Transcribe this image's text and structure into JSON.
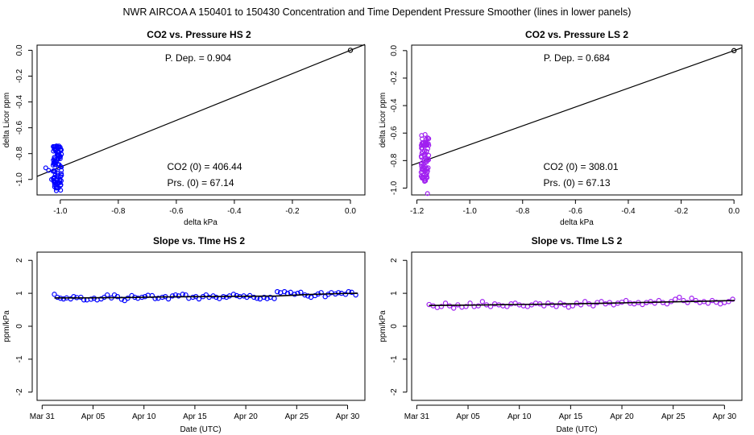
{
  "figure": {
    "title": "NWR   AIRCOA A   150401 to 150430   Concentration and Time Dependent Pressure Smoother (lines in lower panels)"
  },
  "colors": {
    "hs": "#0000ff",
    "ls": "#a020f0",
    "line": "#000000"
  },
  "chart_data": [
    {
      "id": "p1",
      "type": "scatter",
      "title": "CO2 vs. Pressure HS 2",
      "xlabel": "delta kPa",
      "ylabel": "delta Licor ppm",
      "xlim": [
        -1.08,
        0.05
      ],
      "ylim": [
        -1.12,
        0.04
      ],
      "xticks": [
        "-1.0",
        "-0.8",
        "-0.6",
        "-0.4",
        "-0.2",
        "0.0"
      ],
      "yticks": [
        "-1.0",
        "-0.8",
        "-0.6",
        "-0.4",
        "-0.2",
        "0.0"
      ],
      "annotations": [
        "P. Dep. =  0.904",
        "CO2 (0) =  406.44",
        "Prs. (0) =  67.14"
      ],
      "fit": {
        "slope": 0.904,
        "intercept": 0
      },
      "origin_point": [
        0,
        0
      ],
      "cluster": {
        "x_center": -1.01,
        "x_spread": 0.015,
        "y_min": -1.09,
        "y_max": -0.74,
        "n": 90,
        "outliers": [
          [
            -1.05,
            -0.91
          ],
          [
            -1.04,
            -0.93
          ],
          [
            -1.03,
            -1.0
          ]
        ]
      },
      "color": "hs"
    },
    {
      "id": "p2",
      "type": "scatter",
      "title": "CO2 vs. Pressure LS 2",
      "xlabel": "delta kPa",
      "ylabel": "delta Licor ppm",
      "xlim": [
        -1.22,
        0.03
      ],
      "ylim": [
        -1.05,
        0.04
      ],
      "xticks": [
        "-1.2",
        "-1.0",
        "-0.8",
        "-0.6",
        "-0.4",
        "-0.2",
        "0.0"
      ],
      "yticks": [
        "-1.0",
        "-0.8",
        "-0.6",
        "-0.4",
        "-0.2",
        "0.0"
      ],
      "annotations": [
        "P. Dep. =  0.684",
        "CO2 (0) =  308.01",
        "Prs. (0) =  67.13"
      ],
      "fit": {
        "slope": 0.684,
        "intercept": 0
      },
      "origin_point": [
        0,
        0
      ],
      "cluster": {
        "x_center": -1.17,
        "x_spread": 0.015,
        "y_min": -0.98,
        "y_max": -0.61,
        "n": 80,
        "outliers": [
          [
            -1.16,
            -1.04
          ]
        ]
      },
      "color": "ls"
    },
    {
      "id": "p3",
      "type": "scatter",
      "title": "Slope vs. TIme HS 2",
      "xlabel": "Date (UTC)",
      "ylabel": "ppm/kPa",
      "xlim": [
        -0.5,
        31.7
      ],
      "ylim": [
        -2.25,
        2.25
      ],
      "xticks": [
        "Mar 31",
        "Apr 05",
        "Apr 10",
        "Apr 15",
        "Apr 20",
        "Apr 25",
        "Apr 30"
      ],
      "xtick_days": [
        0,
        5,
        10,
        15,
        20,
        25,
        30
      ],
      "yticks": [
        "-2",
        "-1",
        "0",
        "1",
        "2"
      ],
      "smoother": [
        [
          1.2,
          0.86
        ],
        [
          4,
          0.86
        ],
        [
          8,
          0.87
        ],
        [
          12,
          0.89
        ],
        [
          16,
          0.9
        ],
        [
          20,
          0.91
        ],
        [
          23,
          0.92
        ],
        [
          26,
          0.96
        ],
        [
          29,
          0.99
        ],
        [
          31,
          1.0
        ]
      ],
      "points": [
        [
          1.2,
          0.97
        ],
        [
          1.5,
          0.88
        ],
        [
          1.8,
          0.85
        ],
        [
          2.1,
          0.83
        ],
        [
          2.4,
          0.86
        ],
        [
          2.8,
          0.83
        ],
        [
          3.1,
          0.9
        ],
        [
          3.4,
          0.87
        ],
        [
          3.8,
          0.88
        ],
        [
          4.1,
          0.8
        ],
        [
          4.4,
          0.8
        ],
        [
          4.8,
          0.82
        ],
        [
          5.1,
          0.85
        ],
        [
          5.4,
          0.8
        ],
        [
          5.8,
          0.83
        ],
        [
          6.1,
          0.88
        ],
        [
          6.4,
          0.95
        ],
        [
          6.8,
          0.86
        ],
        [
          7.1,
          0.95
        ],
        [
          7.4,
          0.9
        ],
        [
          7.8,
          0.82
        ],
        [
          8.1,
          0.78
        ],
        [
          8.4,
          0.85
        ],
        [
          8.8,
          0.93
        ],
        [
          9.1,
          0.88
        ],
        [
          9.4,
          0.85
        ],
        [
          9.8,
          0.88
        ],
        [
          10.1,
          0.9
        ],
        [
          10.4,
          0.94
        ],
        [
          10.8,
          0.93
        ],
        [
          11.1,
          0.84
        ],
        [
          11.4,
          0.85
        ],
        [
          11.8,
          0.88
        ],
        [
          12.1,
          0.9
        ],
        [
          12.4,
          0.83
        ],
        [
          12.8,
          0.92
        ],
        [
          13.1,
          0.95
        ],
        [
          13.4,
          0.92
        ],
        [
          13.8,
          0.97
        ],
        [
          14.1,
          0.95
        ],
        [
          14.4,
          0.85
        ],
        [
          14.8,
          0.88
        ],
        [
          15.1,
          0.9
        ],
        [
          15.4,
          0.83
        ],
        [
          15.8,
          0.9
        ],
        [
          16.1,
          0.95
        ],
        [
          16.4,
          0.88
        ],
        [
          16.8,
          0.92
        ],
        [
          17.1,
          0.88
        ],
        [
          17.4,
          0.84
        ],
        [
          17.8,
          0.9
        ],
        [
          18.1,
          0.88
        ],
        [
          18.4,
          0.92
        ],
        [
          18.8,
          0.97
        ],
        [
          19.1,
          0.93
        ],
        [
          19.4,
          0.9
        ],
        [
          19.8,
          0.92
        ],
        [
          20.1,
          0.88
        ],
        [
          20.4,
          0.93
        ],
        [
          20.8,
          0.88
        ],
        [
          21.1,
          0.85
        ],
        [
          21.4,
          0.83
        ],
        [
          21.8,
          0.88
        ],
        [
          22.1,
          0.84
        ],
        [
          22.4,
          0.88
        ],
        [
          22.8,
          0.84
        ],
        [
          23.1,
          1.05
        ],
        [
          23.4,
          1.02
        ],
        [
          23.8,
          1.05
        ],
        [
          24.1,
          1.0
        ],
        [
          24.4,
          1.03
        ],
        [
          24.8,
          0.97
        ],
        [
          25.1,
          1.0
        ],
        [
          25.4,
          1.03
        ],
        [
          25.8,
          0.95
        ],
        [
          26.1,
          0.92
        ],
        [
          26.4,
          0.88
        ],
        [
          26.8,
          0.93
        ],
        [
          27.1,
          0.98
        ],
        [
          27.4,
          1.02
        ],
        [
          27.8,
          0.9
        ],
        [
          28.1,
          0.97
        ],
        [
          28.4,
          1.02
        ],
        [
          28.8,
          0.98
        ],
        [
          29.1,
          1.02
        ],
        [
          29.4,
          1.0
        ],
        [
          29.8,
          0.97
        ],
        [
          30.1,
          1.05
        ],
        [
          30.4,
          1.03
        ],
        [
          30.8,
          0.95
        ]
      ],
      "color": "hs"
    },
    {
      "id": "p4",
      "type": "scatter",
      "title": "Slope vs. TIme LS 2",
      "xlabel": "Date (UTC)",
      "ylabel": "ppm/kPa",
      "xlim": [
        -0.5,
        31.7
      ],
      "ylim": [
        -2.25,
        2.25
      ],
      "xticks": [
        "Mar 31",
        "Apr 05",
        "Apr 10",
        "Apr 15",
        "Apr 20",
        "Apr 25",
        "Apr 30"
      ],
      "xtick_days": [
        0,
        5,
        10,
        15,
        20,
        25,
        30
      ],
      "yticks": [
        "-2",
        "-1",
        "0",
        "1",
        "2"
      ],
      "smoother": [
        [
          1.2,
          0.63
        ],
        [
          5,
          0.64
        ],
        [
          10,
          0.66
        ],
        [
          15,
          0.68
        ],
        [
          20,
          0.71
        ],
        [
          25,
          0.74
        ],
        [
          28,
          0.76
        ],
        [
          31,
          0.78
        ]
      ],
      "points": [
        [
          1.2,
          0.66
        ],
        [
          1.6,
          0.62
        ],
        [
          2.0,
          0.57
        ],
        [
          2.4,
          0.6
        ],
        [
          2.8,
          0.7
        ],
        [
          3.2,
          0.62
        ],
        [
          3.6,
          0.55
        ],
        [
          4.0,
          0.65
        ],
        [
          4.4,
          0.58
        ],
        [
          4.8,
          0.6
        ],
        [
          5.2,
          0.7
        ],
        [
          5.6,
          0.6
        ],
        [
          6.0,
          0.62
        ],
        [
          6.4,
          0.75
        ],
        [
          6.8,
          0.65
        ],
        [
          7.2,
          0.6
        ],
        [
          7.6,
          0.68
        ],
        [
          8.0,
          0.65
        ],
        [
          8.4,
          0.62
        ],
        [
          8.8,
          0.6
        ],
        [
          9.2,
          0.68
        ],
        [
          9.6,
          0.7
        ],
        [
          10.0,
          0.65
        ],
        [
          10.4,
          0.62
        ],
        [
          10.8,
          0.6
        ],
        [
          11.2,
          0.65
        ],
        [
          11.6,
          0.7
        ],
        [
          12.0,
          0.68
        ],
        [
          12.4,
          0.62
        ],
        [
          12.8,
          0.7
        ],
        [
          13.2,
          0.65
        ],
        [
          13.6,
          0.6
        ],
        [
          14.0,
          0.7
        ],
        [
          14.4,
          0.65
        ],
        [
          14.8,
          0.58
        ],
        [
          15.2,
          0.62
        ],
        [
          15.6,
          0.7
        ],
        [
          16.0,
          0.65
        ],
        [
          16.4,
          0.75
        ],
        [
          16.8,
          0.68
        ],
        [
          17.2,
          0.62
        ],
        [
          17.6,
          0.72
        ],
        [
          18.0,
          0.75
        ],
        [
          18.4,
          0.68
        ],
        [
          18.8,
          0.72
        ],
        [
          19.2,
          0.65
        ],
        [
          19.6,
          0.7
        ],
        [
          20.0,
          0.73
        ],
        [
          20.4,
          0.78
        ],
        [
          20.8,
          0.7
        ],
        [
          21.2,
          0.68
        ],
        [
          21.6,
          0.72
        ],
        [
          22.0,
          0.66
        ],
        [
          22.4,
          0.72
        ],
        [
          22.8,
          0.75
        ],
        [
          23.2,
          0.7
        ],
        [
          23.6,
          0.78
        ],
        [
          24.0,
          0.72
        ],
        [
          24.4,
          0.68
        ],
        [
          24.8,
          0.75
        ],
        [
          25.2,
          0.82
        ],
        [
          25.6,
          0.88
        ],
        [
          26.0,
          0.78
        ],
        [
          26.4,
          0.72
        ],
        [
          26.8,
          0.85
        ],
        [
          27.2,
          0.78
        ],
        [
          27.6,
          0.72
        ],
        [
          28.0,
          0.75
        ],
        [
          28.4,
          0.7
        ],
        [
          28.8,
          0.78
        ],
        [
          29.2,
          0.73
        ],
        [
          29.6,
          0.68
        ],
        [
          30.0,
          0.72
        ],
        [
          30.4,
          0.75
        ],
        [
          30.8,
          0.82
        ]
      ],
      "color": "ls"
    }
  ]
}
